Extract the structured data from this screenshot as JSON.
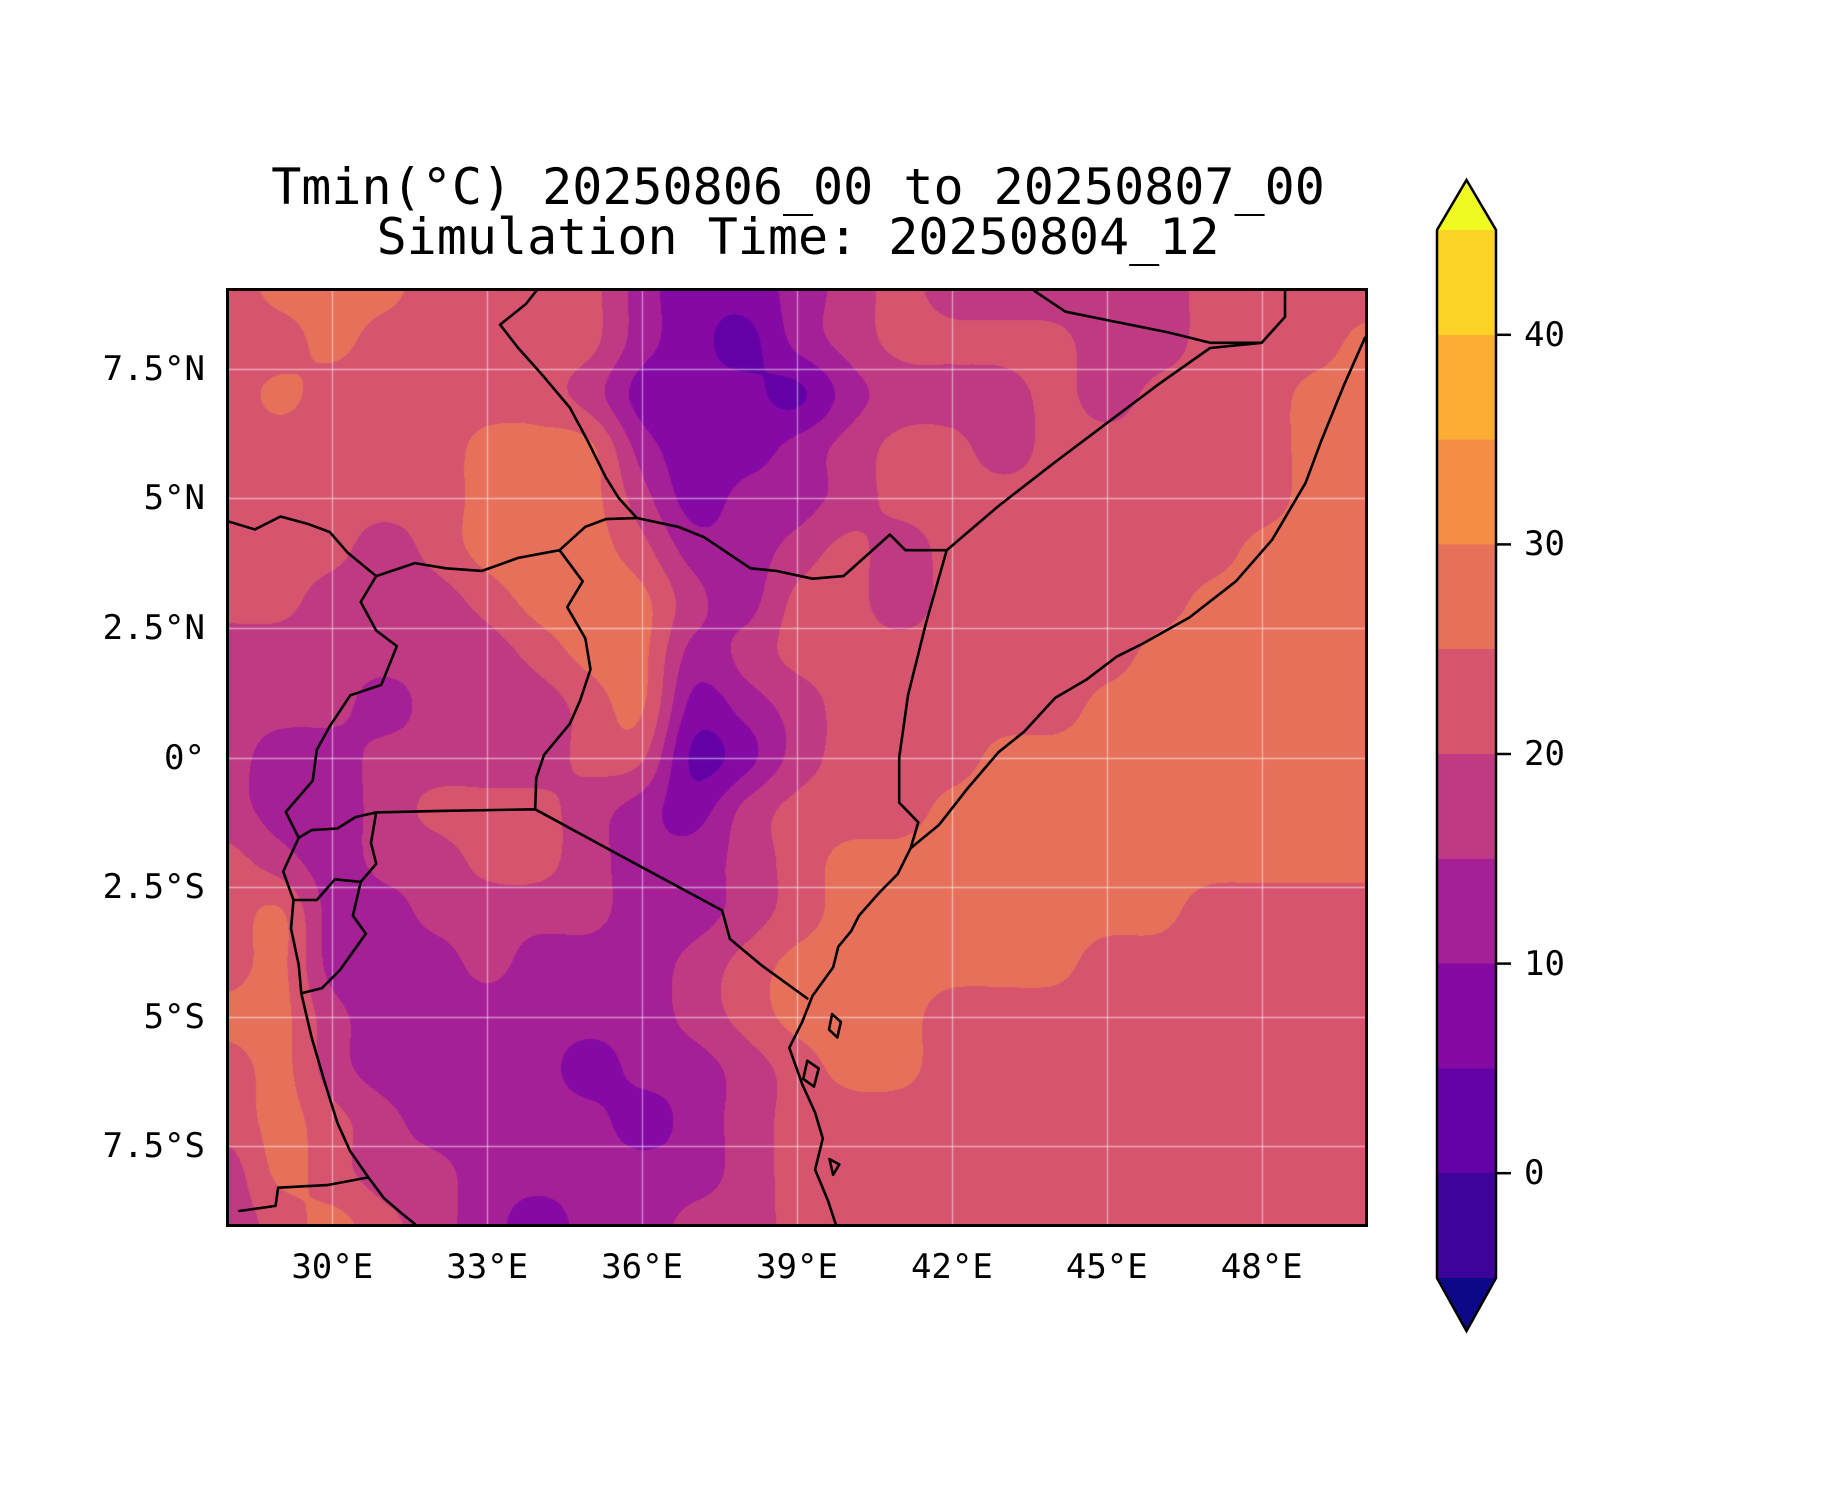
{
  "title": {
    "line1": "Tmin(°C) 20250806_00 to 20250807_00",
    "line2": "Simulation Time: 20250804_12"
  },
  "axes": {
    "x_ticks": [
      {
        "lon": 30,
        "label": "30°E"
      },
      {
        "lon": 33,
        "label": "33°E"
      },
      {
        "lon": 36,
        "label": "36°E"
      },
      {
        "lon": 39,
        "label": "39°E"
      },
      {
        "lon": 42,
        "label": "42°E"
      },
      {
        "lon": 45,
        "label": "45°E"
      },
      {
        "lon": 48,
        "label": "48°E"
      }
    ],
    "y_ticks": [
      {
        "lat": 7.5,
        "label": "7.5°N"
      },
      {
        "lat": 5,
        "label": "5°N"
      },
      {
        "lat": 2.5,
        "label": "2.5°N"
      },
      {
        "lat": 0,
        "label": "0°"
      },
      {
        "lat": -2.5,
        "label": "2.5°S"
      },
      {
        "lat": -5,
        "label": "5°S"
      },
      {
        "lat": -7.5,
        "label": "7.5°S"
      }
    ]
  },
  "colorbar": {
    "min": -5,
    "max": 45,
    "step": 5,
    "under_color": "#0d0887",
    "over_color": "#f0f921",
    "band_colors": [
      "#3c049b",
      "#6301a6",
      "#8509a5",
      "#a51f97",
      "#c03a83",
      "#d6546e",
      "#e7705a",
      "#f58d45",
      "#fcad33",
      "#fbd225"
    ],
    "ticks": [
      {
        "value": 40,
        "label": "40"
      },
      {
        "value": 30,
        "label": "30"
      },
      {
        "value": 20,
        "label": "20"
      },
      {
        "value": 10,
        "label": "10"
      },
      {
        "value": 0,
        "label": "0"
      }
    ]
  },
  "chart_data": {
    "type": "heatmap",
    "title": "Tmin(°C) 20250806_00 to 20250807_00",
    "subtitle": "Simulation Time: 20250804_12",
    "variable": "Tmin",
    "units": "°C",
    "extent": {
      "lon_min": 28,
      "lon_max": 50,
      "lat_min": -9,
      "lat_max": 9
    },
    "gridline_lons": [
      30,
      33,
      36,
      39,
      42,
      45,
      48
    ],
    "gridline_lats": [
      7.5,
      5,
      2.5,
      0,
      -2.5,
      -5,
      -7.5
    ],
    "levels": [
      -5,
      0,
      5,
      10,
      15,
      20,
      25,
      30,
      35,
      40,
      45
    ],
    "lon": [
      28,
      29,
      30,
      31,
      32,
      33,
      34,
      35,
      36,
      37,
      38,
      39,
      40,
      41,
      42,
      43,
      44,
      45,
      46,
      47,
      48,
      49,
      50
    ],
    "lat": [
      9,
      8,
      7,
      6,
      5,
      4,
      3,
      2,
      1,
      0,
      -1,
      -2,
      -3,
      -4,
      -5,
      -6,
      -7,
      -8,
      -9
    ],
    "tmin_grid": [
      [
        22,
        27,
        27,
        27,
        22,
        22,
        22,
        22,
        12,
        7,
        7,
        12,
        17,
        22,
        17,
        17,
        17,
        17,
        17,
        22,
        22,
        22,
        22
      ],
      [
        22,
        22,
        27,
        22,
        22,
        22,
        22,
        22,
        12,
        7,
        2,
        12,
        17,
        22,
        22,
        22,
        22,
        17,
        17,
        22,
        22,
        22,
        27
      ],
      [
        22,
        27,
        22,
        22,
        22,
        22,
        22,
        17,
        7,
        7,
        7,
        2,
        12,
        17,
        17,
        17,
        22,
        17,
        22,
        22,
        22,
        27,
        27
      ],
      [
        22,
        22,
        22,
        22,
        22,
        27,
        27,
        27,
        12,
        7,
        7,
        12,
        17,
        22,
        22,
        17,
        22,
        22,
        22,
        22,
        22,
        27,
        27
      ],
      [
        22,
        22,
        22,
        22,
        22,
        27,
        27,
        27,
        17,
        7,
        12,
        12,
        17,
        22,
        22,
        22,
        22,
        22,
        22,
        22,
        22,
        27,
        27
      ],
      [
        22,
        22,
        22,
        17,
        22,
        27,
        27,
        27,
        22,
        12,
        12,
        17,
        22,
        17,
        22,
        22,
        22,
        22,
        22,
        22,
        27,
        27,
        27
      ],
      [
        22,
        22,
        17,
        17,
        17,
        22,
        27,
        27,
        27,
        17,
        12,
        22,
        22,
        17,
        22,
        22,
        22,
        22,
        22,
        27,
        27,
        27,
        27
      ],
      [
        17,
        17,
        17,
        17,
        17,
        17,
        22,
        27,
        27,
        12,
        17,
        22,
        22,
        22,
        22,
        22,
        22,
        22,
        27,
        27,
        27,
        27,
        27
      ],
      [
        17,
        17,
        17,
        12,
        17,
        17,
        17,
        22,
        27,
        7,
        12,
        17,
        22,
        22,
        22,
        22,
        22,
        27,
        27,
        27,
        27,
        27,
        27
      ],
      [
        17,
        12,
        12,
        17,
        17,
        17,
        17,
        22,
        22,
        2,
        7,
        17,
        22,
        22,
        22,
        27,
        27,
        27,
        27,
        27,
        27,
        27,
        27
      ],
      [
        17,
        12,
        12,
        17,
        22,
        22,
        22,
        17,
        12,
        7,
        17,
        22,
        22,
        22,
        27,
        27,
        27,
        27,
        27,
        27,
        27,
        27,
        27
      ],
      [
        22,
        17,
        12,
        17,
        17,
        22,
        22,
        17,
        12,
        12,
        17,
        22,
        27,
        27,
        27,
        27,
        27,
        27,
        27,
        27,
        27,
        27,
        27
      ],
      [
        22,
        27,
        12,
        12,
        17,
        17,
        17,
        17,
        12,
        12,
        17,
        22,
        27,
        27,
        27,
        27,
        27,
        27,
        27,
        22,
        22,
        22,
        22
      ],
      [
        22,
        27,
        12,
        12,
        12,
        17,
        12,
        12,
        12,
        17,
        22,
        27,
        27,
        27,
        27,
        27,
        27,
        22,
        22,
        22,
        22,
        22,
        22
      ],
      [
        27,
        27,
        17,
        12,
        12,
        12,
        12,
        12,
        12,
        17,
        22,
        27,
        27,
        27,
        22,
        22,
        22,
        22,
        22,
        22,
        22,
        22,
        22
      ],
      [
        22,
        27,
        17,
        12,
        12,
        12,
        12,
        7,
        12,
        12,
        17,
        22,
        27,
        27,
        22,
        22,
        22,
        22,
        22,
        22,
        22,
        22,
        22
      ],
      [
        22,
        27,
        22,
        17,
        12,
        12,
        12,
        12,
        7,
        12,
        17,
        22,
        22,
        22,
        22,
        22,
        22,
        22,
        22,
        22,
        22,
        22,
        22
      ],
      [
        17,
        27,
        22,
        17,
        17,
        12,
        12,
        12,
        12,
        12,
        17,
        22,
        22,
        22,
        22,
        22,
        22,
        22,
        22,
        22,
        22,
        22,
        22
      ],
      [
        17,
        22,
        27,
        22,
        17,
        12,
        7,
        12,
        12,
        17,
        17,
        22,
        22,
        22,
        22,
        22,
        22,
        22,
        22,
        22,
        22,
        22,
        22
      ]
    ],
    "borders": [
      [
        [
          50.0,
          8.1
        ],
        [
          49.6,
          7.2
        ],
        [
          49.15,
          6.1
        ],
        [
          48.85,
          5.3
        ],
        [
          48.2,
          4.2
        ],
        [
          47.5,
          3.4
        ],
        [
          46.6,
          2.7
        ],
        [
          45.7,
          2.2
        ],
        [
          45.2,
          1.95
        ],
        [
          44.6,
          1.5
        ],
        [
          44.0,
          1.15
        ],
        [
          43.4,
          0.5
        ],
        [
          42.9,
          0.1
        ],
        [
          42.3,
          -0.6
        ],
        [
          41.75,
          -1.3
        ],
        [
          41.2,
          -1.75
        ],
        [
          40.95,
          -2.25
        ],
        [
          40.6,
          -2.6
        ],
        [
          40.2,
          -3.05
        ],
        [
          40.05,
          -3.35
        ],
        [
          39.8,
          -3.65
        ],
        [
          39.7,
          -4.05
        ],
        [
          39.3,
          -4.6
        ],
        [
          39.1,
          -5.1
        ],
        [
          38.85,
          -5.6
        ],
        [
          39.1,
          -6.3
        ],
        [
          39.35,
          -6.85
        ],
        [
          39.5,
          -7.35
        ],
        [
          39.35,
          -7.95
        ],
        [
          39.6,
          -8.55
        ],
        [
          39.75,
          -9.0
        ]
      ],
      [
        [
          39.68,
          -4.95
        ],
        [
          39.85,
          -5.1
        ],
        [
          39.78,
          -5.4
        ],
        [
          39.62,
          -5.25
        ],
        [
          39.68,
          -4.95
        ]
      ],
      [
        [
          39.2,
          -5.85
        ],
        [
          39.42,
          -6.0
        ],
        [
          39.33,
          -6.35
        ],
        [
          39.12,
          -6.2
        ],
        [
          39.2,
          -5.85
        ]
      ],
      [
        [
          39.63,
          -7.75
        ],
        [
          39.82,
          -7.85
        ],
        [
          39.7,
          -8.05
        ],
        [
          39.63,
          -7.75
        ]
      ],
      [
        [
          28.0,
          4.55
        ],
        [
          28.5,
          4.4
        ],
        [
          29.0,
          4.65
        ],
        [
          29.55,
          4.5
        ],
        [
          29.95,
          4.35
        ],
        [
          30.3,
          3.95
        ],
        [
          30.85,
          3.5
        ],
        [
          30.55,
          3.0
        ],
        [
          30.85,
          2.45
        ],
        [
          31.25,
          2.15
        ],
        [
          30.95,
          1.4
        ],
        [
          30.35,
          1.2
        ],
        [
          29.95,
          0.6
        ],
        [
          29.7,
          0.15
        ],
        [
          29.62,
          -0.45
        ],
        [
          29.1,
          -1.05
        ],
        [
          29.35,
          -1.55
        ],
        [
          29.05,
          -2.2
        ],
        [
          29.25,
          -2.75
        ],
        [
          29.2,
          -3.3
        ],
        [
          29.35,
          -4.0
        ],
        [
          29.4,
          -4.55
        ],
        [
          29.6,
          -5.4
        ],
        [
          29.85,
          -6.25
        ],
        [
          30.1,
          -7.05
        ],
        [
          30.35,
          -7.6
        ],
        [
          30.7,
          -8.1
        ],
        [
          31.0,
          -8.5
        ],
        [
          31.35,
          -8.8
        ],
        [
          31.6,
          -9.0
        ]
      ],
      [
        [
          30.7,
          -8.1
        ],
        [
          29.9,
          -8.25
        ],
        [
          28.95,
          -8.3
        ],
        [
          28.9,
          -8.65
        ],
        [
          28.2,
          -8.75
        ]
      ],
      [
        [
          30.85,
          3.5
        ],
        [
          31.6,
          3.75
        ],
        [
          32.2,
          3.65
        ],
        [
          32.9,
          3.6
        ],
        [
          33.6,
          3.85
        ],
        [
          34.4,
          4.0
        ],
        [
          34.9,
          4.45
        ],
        [
          35.3,
          4.6
        ],
        [
          35.9,
          4.62
        ]
      ],
      [
        [
          35.9,
          4.62
        ],
        [
          35.55,
          5.0
        ],
        [
          35.3,
          5.4
        ],
        [
          34.95,
          6.1
        ],
        [
          34.6,
          6.75
        ],
        [
          34.05,
          7.4
        ],
        [
          33.6,
          7.9
        ],
        [
          33.25,
          8.35
        ],
        [
          33.75,
          8.75
        ],
        [
          33.95,
          9.0
        ]
      ],
      [
        [
          35.9,
          4.62
        ],
        [
          36.7,
          4.45
        ],
        [
          37.2,
          4.25
        ],
        [
          38.1,
          3.65
        ],
        [
          38.6,
          3.6
        ],
        [
          39.3,
          3.45
        ],
        [
          39.9,
          3.5
        ],
        [
          40.8,
          4.3
        ],
        [
          41.1,
          4.0
        ],
        [
          41.9,
          4.0
        ]
      ],
      [
        [
          41.9,
          4.0
        ],
        [
          41.5,
          2.6
        ],
        [
          41.15,
          1.2
        ],
        [
          40.98,
          0.0
        ],
        [
          40.98,
          -0.87
        ],
        [
          41.35,
          -1.25
        ],
        [
          41.2,
          -1.75
        ]
      ],
      [
        [
          41.9,
          4.0
        ],
        [
          42.9,
          4.85
        ],
        [
          44.0,
          5.7
        ],
        [
          45.0,
          6.45
        ],
        [
          46.0,
          7.2
        ],
        [
          47.0,
          7.9
        ],
        [
          48.0,
          8.0
        ]
      ],
      [
        [
          43.6,
          9.0
        ],
        [
          44.2,
          8.6
        ],
        [
          45.2,
          8.4
        ],
        [
          46.2,
          8.2
        ],
        [
          47.0,
          8.0
        ],
        [
          48.0,
          8.0
        ]
      ],
      [
        [
          48.0,
          8.0
        ],
        [
          48.45,
          8.5
        ],
        [
          48.45,
          9.0
        ]
      ],
      [
        [
          34.4,
          4.0
        ],
        [
          34.85,
          3.4
        ],
        [
          34.55,
          2.9
        ],
        [
          34.9,
          2.3
        ],
        [
          35.0,
          1.7
        ],
        [
          34.8,
          1.1
        ],
        [
          34.6,
          0.65
        ],
        [
          34.1,
          0.05
        ],
        [
          33.95,
          -0.4
        ],
        [
          33.93,
          -1.0
        ]
      ],
      [
        [
          33.93,
          -1.0
        ],
        [
          32.1,
          -1.03
        ],
        [
          30.85,
          -1.06
        ]
      ],
      [
        [
          30.85,
          -1.06
        ],
        [
          30.45,
          -1.15
        ],
        [
          30.1,
          -1.37
        ],
        [
          29.6,
          -1.4
        ],
        [
          29.35,
          -1.55
        ]
      ],
      [
        [
          30.85,
          -1.06
        ],
        [
          30.75,
          -1.65
        ],
        [
          30.85,
          -2.05
        ],
        [
          30.55,
          -2.4
        ],
        [
          30.4,
          -3.05
        ],
        [
          30.65,
          -3.4
        ],
        [
          30.15,
          -4.1
        ],
        [
          29.8,
          -4.45
        ],
        [
          29.4,
          -4.55
        ]
      ],
      [
        [
          30.55,
          -2.4
        ],
        [
          30.05,
          -2.35
        ],
        [
          29.7,
          -2.75
        ],
        [
          29.25,
          -2.75
        ]
      ],
      [
        [
          33.93,
          -1.0
        ],
        [
          35.5,
          -1.85
        ],
        [
          37.55,
          -2.95
        ],
        [
          37.7,
          -3.5
        ],
        [
          38.3,
          -4.0
        ],
        [
          39.2,
          -4.65
        ]
      ]
    ]
  }
}
